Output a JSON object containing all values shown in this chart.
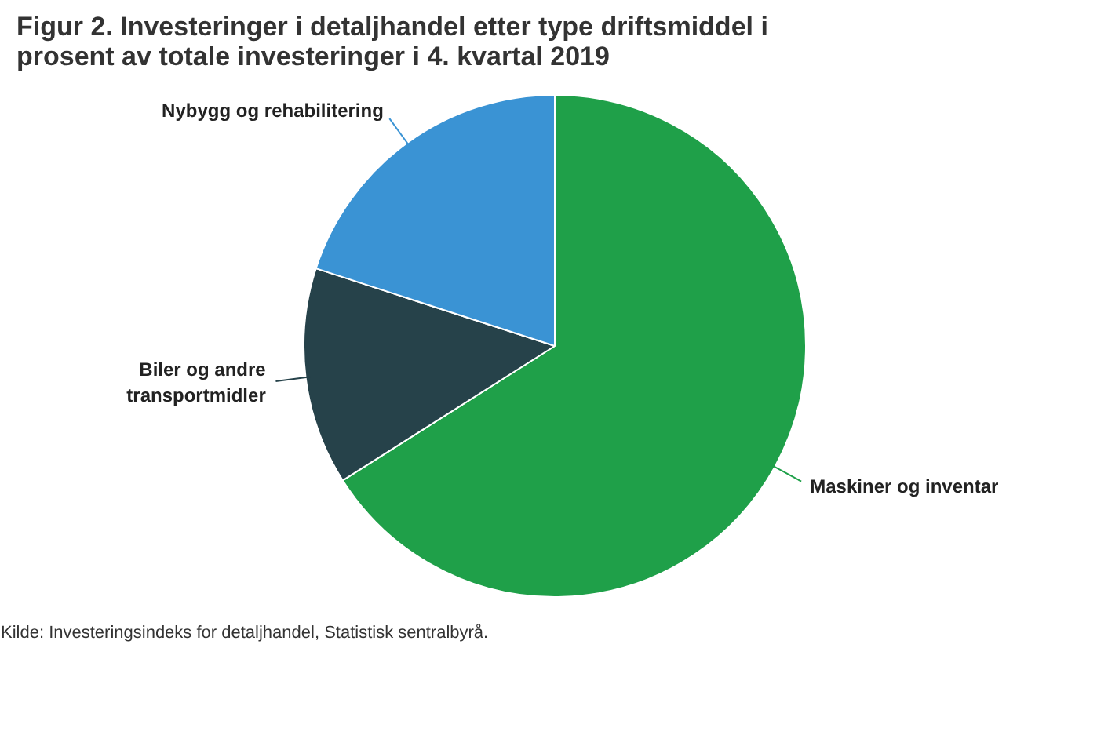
{
  "chart_data": {
    "type": "pie",
    "title": "Figur 2. Investeringer i detaljhandel etter type driftsmiddel i prosent av totale investeringer i 4. kvartal 2019",
    "categories": [
      "Maskiner og inventar",
      "Biler og andre transportmidler",
      "Nybygg og rehabilitering"
    ],
    "values": [
      66,
      14,
      20
    ],
    "colors": [
      "#1fa049",
      "#26424a",
      "#3a93d4"
    ],
    "annotations": [
      "Kilde: Investeringsindeks for detaljhandel, Statistisk sentralbyrå."
    ]
  }
}
